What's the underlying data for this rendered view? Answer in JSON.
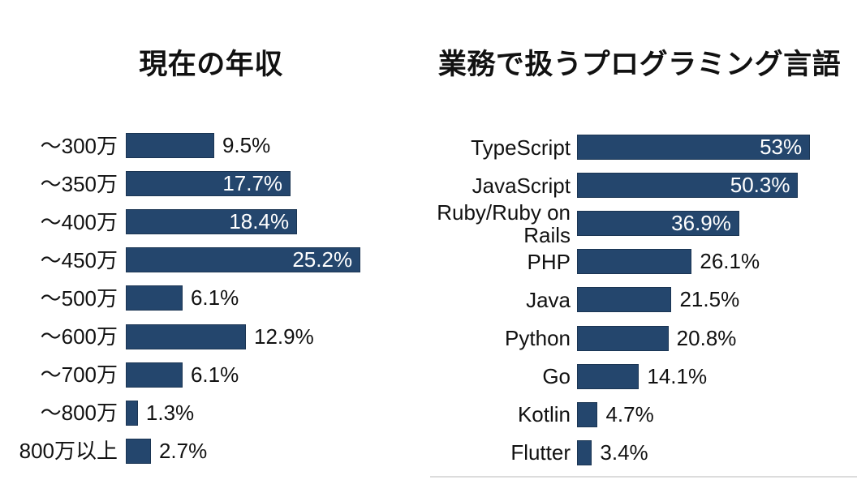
{
  "page": {
    "background": "#ffffff",
    "footer_line_color": "#dcdcdc"
  },
  "chart_data": [
    {
      "type": "bar",
      "orientation": "horizontal",
      "title": "現在の年収",
      "categories": [
        "〜300万",
        "〜350万",
        "〜400万",
        "〜450万",
        "〜500万",
        "〜600万",
        "〜700万",
        "〜800万",
        "800万以上"
      ],
      "values": [
        9.5,
        17.7,
        18.4,
        25.2,
        6.1,
        12.9,
        6.1,
        1.3,
        2.7
      ],
      "value_labels": [
        "9.5%",
        "17.7%",
        "18.4%",
        "25.2%",
        "6.1%",
        "12.9%",
        "6.1%",
        "1.3%",
        "2.7%"
      ],
      "xlim": [
        0,
        26.5
      ],
      "bar_color": "#24466d",
      "grid": false,
      "legend": false
    },
    {
      "type": "bar",
      "orientation": "horizontal",
      "title": "業務で扱うプログラミング言語",
      "categories": [
        "TypeScript",
        "JavaScript",
        "Ruby/Ruby on Rails",
        "PHP",
        "Java",
        "Python",
        "Go",
        "Kotlin",
        "Flutter"
      ],
      "values": [
        53,
        50.3,
        36.9,
        26.1,
        21.5,
        20.8,
        14.1,
        4.7,
        3.4
      ],
      "value_labels": [
        "53%",
        "50.3%",
        "36.9%",
        "26.1%",
        "21.5%",
        "20.8%",
        "14.1%",
        "4.7%",
        "3.4%"
      ],
      "xlim": [
        0,
        63.5
      ],
      "bar_color": "#24466d",
      "grid": false,
      "legend": false
    }
  ]
}
